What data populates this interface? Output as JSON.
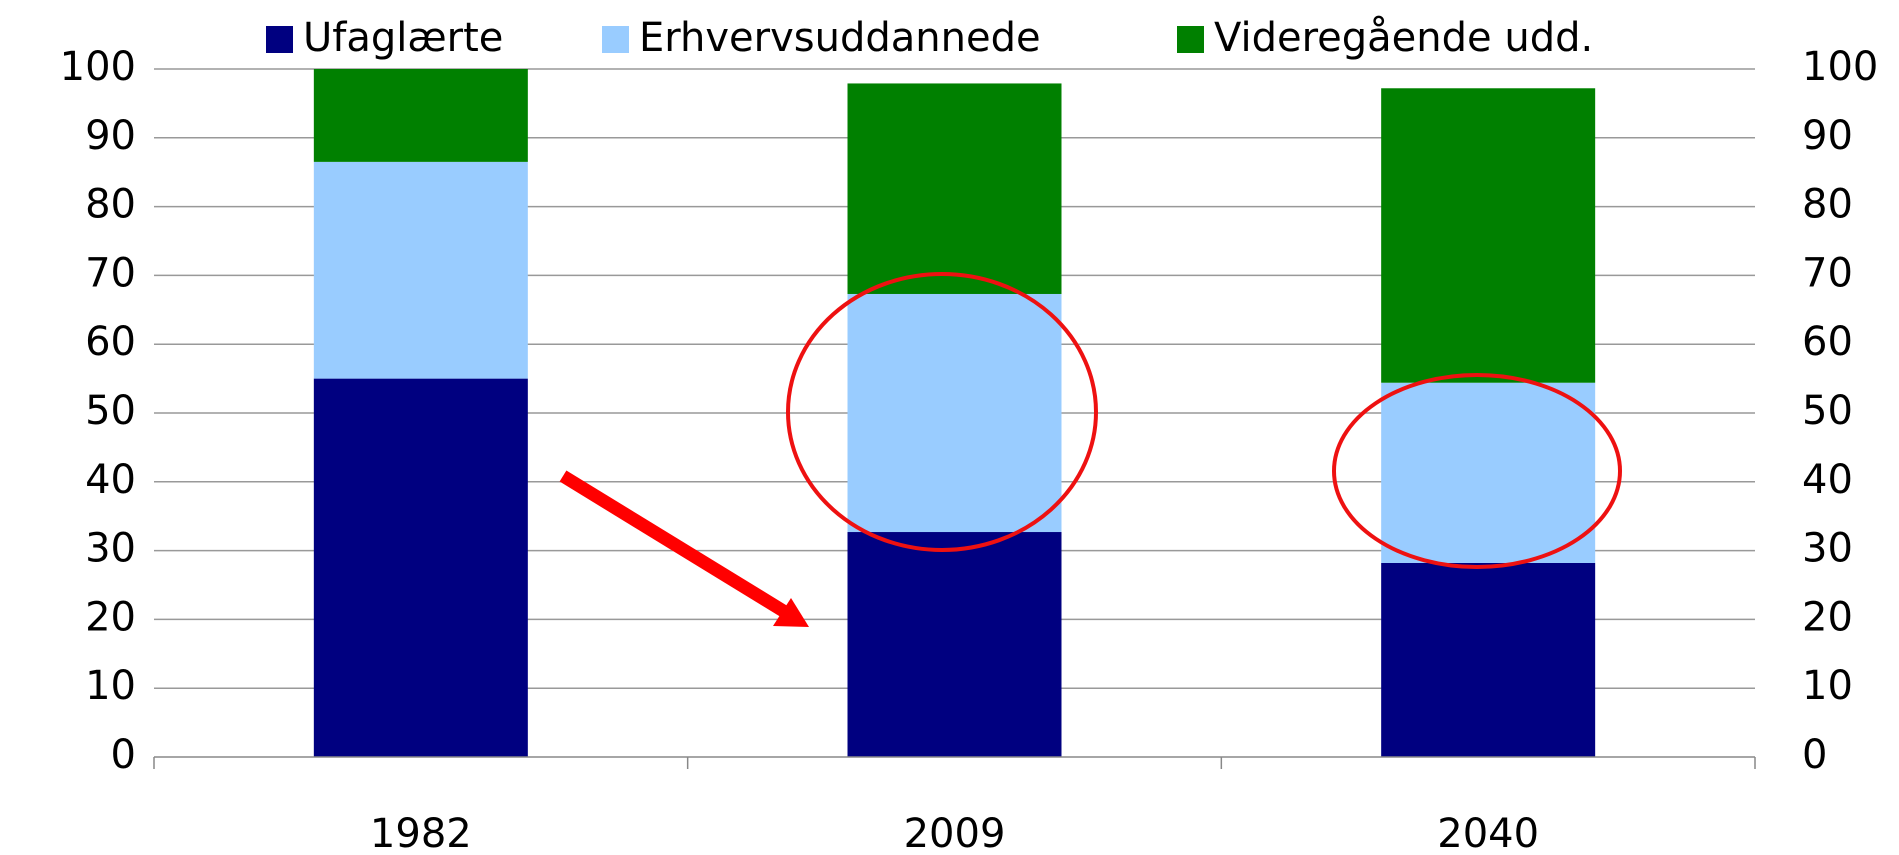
{
  "chart_data": {
    "type": "stacked_bar",
    "categories": [
      "1982",
      "2009",
      "2040"
    ],
    "series": [
      {
        "name": "Ufaglærte",
        "color": "#000080",
        "values": [
          55,
          32.7,
          28.2
        ]
      },
      {
        "name": "Erhvervsuddannede",
        "color": "#99ccff",
        "values": [
          31.5,
          34.6,
          26.2
        ]
      },
      {
        "name": "Videregående udd.",
        "color": "#008000",
        "values": [
          13.5,
          30.6,
          42.8
        ]
      }
    ],
    "ylim": [
      0,
      100
    ],
    "yticks": [
      0,
      10,
      20,
      30,
      40,
      50,
      60,
      70,
      80,
      90,
      100
    ],
    "y2lim": [
      0,
      100
    ],
    "y2ticks": [
      0,
      10,
      20,
      30,
      40,
      50,
      60,
      70,
      80,
      90,
      100
    ],
    "grid": true,
    "legend": "top"
  }
}
